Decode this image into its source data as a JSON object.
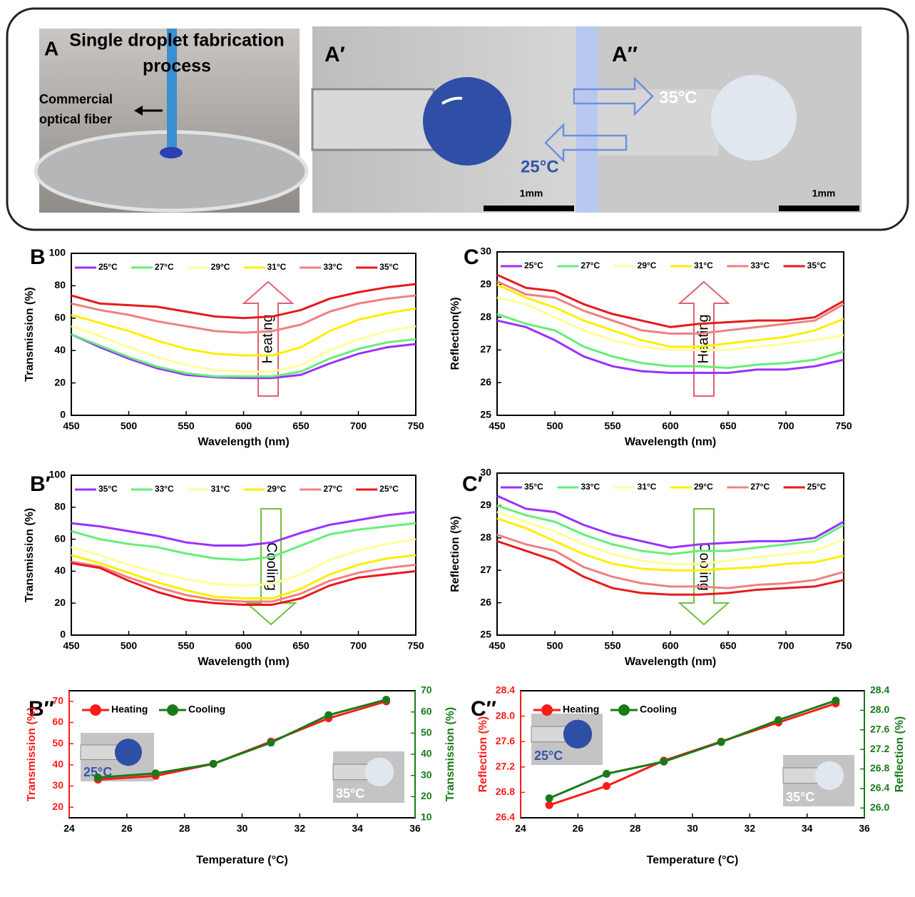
{
  "photo_panel": {
    "labels": [
      "A",
      "A′",
      "A″"
    ],
    "title": [
      "Single droplet fabrication",
      "process"
    ],
    "fiber_label": [
      "Commercial",
      "optical fiber"
    ],
    "hot_label": "35°C",
    "cold_label": "25°C",
    "scale_bars": [
      "1mm",
      "1mm"
    ]
  },
  "chart_data": [
    {
      "type": "line",
      "panel_label": "B",
      "annotation": "Heating",
      "x_label": "Wavelength (nm)",
      "y_label": "Transmission (%)",
      "x": [
        450,
        475,
        500,
        525,
        550,
        575,
        600,
        625,
        650,
        675,
        700,
        725,
        750
      ],
      "xlim": [
        450,
        750
      ],
      "xticks": [
        450,
        500,
        550,
        600,
        650,
        700,
        750
      ],
      "ylim": [
        0,
        100
      ],
      "yticks": [
        0,
        20,
        40,
        60,
        80,
        100
      ],
      "series": [
        {
          "name": "25°C",
          "color": "#9b30ff",
          "values": [
            50,
            42,
            35,
            29,
            25,
            23.5,
            23,
            23,
            25,
            32,
            38,
            42,
            44
          ]
        },
        {
          "name": "27°C",
          "color": "#66ee77",
          "values": [
            50,
            43,
            36,
            30,
            26,
            24,
            24,
            24,
            27,
            35,
            41,
            45,
            47
          ]
        },
        {
          "name": "29°C",
          "color": "#ffff99",
          "values": [
            55,
            49,
            42,
            36,
            31,
            28,
            27,
            27,
            31,
            40,
            47,
            52,
            55
          ]
        },
        {
          "name": "31°C",
          "color": "#ffee00",
          "values": [
            62,
            57,
            52,
            46,
            41,
            38,
            37,
            37,
            42,
            52,
            59,
            63,
            66
          ]
        },
        {
          "name": "33°C",
          "color": "#f08080",
          "values": [
            69,
            65,
            62,
            58,
            55,
            52,
            51,
            52,
            56,
            64,
            69,
            72,
            74
          ]
        },
        {
          "name": "35°C",
          "color": "#e8191b",
          "values": [
            74,
            69,
            68,
            67,
            64,
            61,
            60,
            61,
            65,
            72,
            76,
            79,
            81
          ]
        }
      ]
    },
    {
      "type": "line",
      "panel_label": "C",
      "annotation": "Heating",
      "x_label": "Wavelength (nm)",
      "y_label": "Reflection(%)",
      "x": [
        450,
        475,
        500,
        525,
        550,
        575,
        600,
        625,
        650,
        675,
        700,
        725,
        750
      ],
      "xlim": [
        450,
        750
      ],
      "xticks": [
        450,
        500,
        550,
        600,
        650,
        700,
        750
      ],
      "ylim": [
        25,
        30
      ],
      "yticks": [
        25,
        26,
        27,
        28,
        29,
        30
      ],
      "series": [
        {
          "name": "25°C",
          "color": "#9b30ff",
          "values": [
            27.9,
            27.7,
            27.3,
            26.8,
            26.5,
            26.35,
            26.3,
            26.3,
            26.3,
            26.4,
            26.4,
            26.5,
            26.7
          ]
        },
        {
          "name": "27°C",
          "color": "#66ee77",
          "values": [
            28.1,
            27.8,
            27.6,
            27.1,
            26.8,
            26.6,
            26.5,
            26.5,
            26.45,
            26.55,
            26.6,
            26.7,
            26.95
          ]
        },
        {
          "name": "29°C",
          "color": "#ffff99",
          "values": [
            28.6,
            28.4,
            28.0,
            27.6,
            27.3,
            27.1,
            27.0,
            27.0,
            27.0,
            27.1,
            27.2,
            27.3,
            27.45
          ]
        },
        {
          "name": "31°C",
          "color": "#ffee00",
          "values": [
            29.0,
            28.6,
            28.3,
            27.9,
            27.6,
            27.3,
            27.1,
            27.1,
            27.2,
            27.3,
            27.4,
            27.6,
            27.95
          ]
        },
        {
          "name": "33°C",
          "color": "#f08080",
          "values": [
            29.1,
            28.7,
            28.6,
            28.2,
            27.9,
            27.6,
            27.5,
            27.5,
            27.6,
            27.7,
            27.8,
            27.9,
            28.4
          ]
        },
        {
          "name": "35°C",
          "color": "#e8191b",
          "values": [
            29.3,
            28.9,
            28.8,
            28.4,
            28.1,
            27.9,
            27.7,
            27.8,
            27.85,
            27.9,
            27.9,
            28.0,
            28.5
          ]
        }
      ]
    },
    {
      "type": "line",
      "panel_label": "B′",
      "annotation": "Cooling",
      "x_label": "Wavelength (nm)",
      "y_label": "Transmission (%)",
      "x": [
        450,
        475,
        500,
        525,
        550,
        575,
        600,
        625,
        650,
        675,
        700,
        725,
        750
      ],
      "xlim": [
        450,
        750
      ],
      "xticks": [
        450,
        500,
        550,
        600,
        650,
        700,
        750
      ],
      "ylim": [
        0,
        100
      ],
      "yticks": [
        0,
        20,
        40,
        60,
        80,
        100
      ],
      "series": [
        {
          "name": "35°C",
          "color": "#9b30ff",
          "values": [
            70,
            68,
            65,
            62,
            58,
            56,
            56,
            58,
            64,
            69,
            72,
            75,
            77
          ]
        },
        {
          "name": "33°C",
          "color": "#66ee77",
          "values": [
            65,
            60,
            57,
            55,
            51,
            48,
            47,
            49,
            56,
            63,
            66,
            68,
            70
          ]
        },
        {
          "name": "31°C",
          "color": "#ffff99",
          "values": [
            55,
            50,
            44,
            39,
            35,
            32,
            31,
            32,
            38,
            47,
            53,
            57,
            60
          ]
        },
        {
          "name": "29°C",
          "color": "#ffee00",
          "values": [
            50,
            45,
            39,
            33,
            28,
            24,
            23,
            23,
            29,
            38,
            44,
            48,
            50
          ]
        },
        {
          "name": "27°C",
          "color": "#f08080",
          "values": [
            46,
            43,
            36,
            30,
            25,
            22,
            21,
            21,
            26,
            34,
            39,
            42,
            44
          ]
        },
        {
          "name": "25°C",
          "color": "#e8191b",
          "values": [
            45,
            42,
            34,
            27,
            22,
            20,
            19,
            19,
            23,
            31,
            36,
            38,
            40
          ]
        }
      ]
    },
    {
      "type": "line",
      "panel_label": "C′",
      "annotation": "Cooling",
      "x_label": "Wavelength (nm)",
      "y_label": "Reflection (%)",
      "x": [
        450,
        475,
        500,
        525,
        550,
        575,
        600,
        625,
        650,
        675,
        700,
        725,
        750
      ],
      "xlim": [
        450,
        750
      ],
      "xticks": [
        450,
        500,
        550,
        600,
        650,
        700,
        750
      ],
      "ylim": [
        25,
        30
      ],
      "yticks": [
        25,
        26,
        27,
        28,
        29,
        30
      ],
      "series": [
        {
          "name": "35°C",
          "color": "#9b30ff",
          "values": [
            29.3,
            28.9,
            28.8,
            28.4,
            28.1,
            27.9,
            27.7,
            27.8,
            27.85,
            27.9,
            27.9,
            28.0,
            28.5
          ]
        },
        {
          "name": "33°C",
          "color": "#66ee77",
          "values": [
            29.0,
            28.7,
            28.5,
            28.1,
            27.8,
            27.6,
            27.5,
            27.6,
            27.6,
            27.7,
            27.8,
            27.9,
            28.4
          ]
        },
        {
          "name": "31°C",
          "color": "#ffff99",
          "values": [
            28.8,
            28.5,
            28.2,
            27.8,
            27.5,
            27.3,
            27.2,
            27.2,
            27.3,
            27.4,
            27.5,
            27.6,
            27.95
          ]
        },
        {
          "name": "29°C",
          "color": "#ffee00",
          "values": [
            28.6,
            28.3,
            27.9,
            27.5,
            27.2,
            27.05,
            27.0,
            27.0,
            27.05,
            27.1,
            27.2,
            27.25,
            27.45
          ]
        },
        {
          "name": "27°C",
          "color": "#f08080",
          "values": [
            28.1,
            27.8,
            27.6,
            27.1,
            26.8,
            26.6,
            26.5,
            26.5,
            26.45,
            26.55,
            26.6,
            26.7,
            26.95
          ]
        },
        {
          "name": "25°C",
          "color": "#e8191b",
          "values": [
            27.9,
            27.6,
            27.3,
            26.8,
            26.45,
            26.3,
            26.25,
            26.25,
            26.3,
            26.4,
            26.45,
            26.5,
            26.7
          ]
        }
      ]
    },
    {
      "type": "line",
      "markers": true,
      "panel_label": "B″",
      "x_label": "Temperature (°C)",
      "y_label": "Transmission (%)",
      "y2_label": "Transmission (%)",
      "inset_labels": [
        "25°C",
        "35°C"
      ],
      "x": [
        25,
        27,
        29,
        31,
        33,
        35
      ],
      "xlim": [
        24,
        36
      ],
      "xticks": [
        24,
        26,
        28,
        30,
        32,
        34,
        36
      ],
      "ylim": [
        15,
        75
      ],
      "yticks": [
        20,
        30,
        40,
        50,
        60,
        70
      ],
      "y2lim": [
        10,
        70
      ],
      "y2ticks": [
        10,
        20,
        30,
        40,
        50,
        60,
        70
      ],
      "series": [
        {
          "name": "Heating",
          "color": "#ff1a1a",
          "values": [
            33,
            34.8,
            40.5,
            51,
            62,
            70
          ]
        },
        {
          "name": "Cooling",
          "color": "#1a7a1a",
          "axis": "y2",
          "values": [
            29,
            31,
            35.5,
            45.5,
            58.5,
            65.8
          ]
        }
      ]
    },
    {
      "type": "line",
      "markers": true,
      "panel_label": "C″",
      "x_label": "Temperature (°C)",
      "y_label": "Reflection (%)",
      "y2_label": "Reflection (%)",
      "inset_labels": [
        "25°C",
        "35°C"
      ],
      "x": [
        25,
        27,
        29,
        31,
        33,
        35
      ],
      "xlim": [
        24,
        36
      ],
      "xticks": [
        24,
        26,
        28,
        30,
        32,
        34,
        36
      ],
      "ylim": [
        26.4,
        28.4
      ],
      "yticks": [
        26.4,
        26.8,
        27.2,
        27.6,
        {
          "value": 28,
          "label": "28.0"
        },
        28.4
      ],
      "y2lim": [
        25.8,
        28.4
      ],
      "y2ticks": [
        {
          "value": 26,
          "label": "26.0"
        },
        26.4,
        26.8,
        27.2,
        27.6,
        {
          "value": 28,
          "label": "28.0"
        },
        28.4
      ],
      "series": [
        {
          "name": "Heating",
          "color": "#ff1a1a",
          "values": [
            26.6,
            26.9,
            27.3,
            27.6,
            27.9,
            28.2
          ]
        },
        {
          "name": "Cooling",
          "color": "#1a7a1a",
          "axis": "y2",
          "values": [
            26.2,
            26.7,
            26.95,
            27.35,
            27.8,
            28.2
          ]
        }
      ]
    }
  ]
}
